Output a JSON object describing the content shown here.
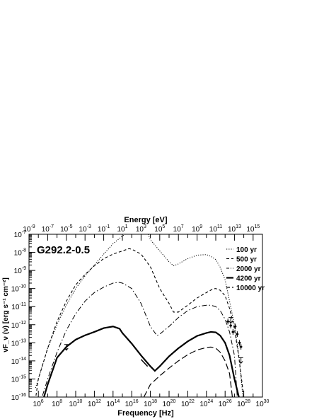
{
  "chart_data": {
    "type": "line",
    "title": "G292.2-0.5",
    "xlabel": "Frequency [Hz]",
    "xlabel_top": "Energy [eV]",
    "ylabel": "νF_ν (ν) [erg s⁻¹ cm⁻²]",
    "x_scale": "log",
    "y_scale": "log",
    "xlim": [
      100000.0,
      1e+30
    ],
    "xlim_top": [
      1e-09,
      1e+16
    ],
    "ylim": [
      1e-16,
      1e-07
    ],
    "legend_position": "top-right",
    "x_ticks": [
      {
        "exp": "6",
        "value": 1000000.0
      },
      {
        "exp": "8",
        "value": 100000000.0
      },
      {
        "exp": "10",
        "value": 10000000000.0
      },
      {
        "exp": "12",
        "value": 1000000000000.0
      },
      {
        "exp": "14",
        "value": 100000000000000.0
      },
      {
        "exp": "16",
        "value": 1e+16
      },
      {
        "exp": "18",
        "value": 1e+18
      },
      {
        "exp": "20",
        "value": 1e+20
      },
      {
        "exp": "22",
        "value": 1e+22
      },
      {
        "exp": "24",
        "value": 1e+24
      },
      {
        "exp": "26",
        "value": 1e+26
      },
      {
        "exp": "28",
        "value": 1e+28
      },
      {
        "exp": "30",
        "value": 1e+30
      }
    ],
    "x_ticks_top": [
      {
        "exp": "-9",
        "value": 1e-09
      },
      {
        "exp": "-7",
        "value": 1e-07
      },
      {
        "exp": "-5",
        "value": 1e-05
      },
      {
        "exp": "-3",
        "value": 0.001
      },
      {
        "exp": "-1",
        "value": 0.1
      },
      {
        "exp": "1",
        "value": 10.0
      },
      {
        "exp": "3",
        "value": 1000.0
      },
      {
        "exp": "5",
        "value": 100000.0
      },
      {
        "exp": "7",
        "value": 10000000.0
      },
      {
        "exp": "9",
        "value": 1000000000.0
      },
      {
        "exp": "11",
        "value": 100000000000.0
      },
      {
        "exp": "13",
        "value": 10000000000000.0
      },
      {
        "exp": "15",
        "value": 1000000000000000.0
      }
    ],
    "y_ticks": [
      {
        "exp": "-7",
        "value": 1e-07
      },
      {
        "exp": "-8",
        "value": 1e-08
      },
      {
        "exp": "-9",
        "value": 1e-09
      },
      {
        "exp": "-10",
        "value": 1e-10
      },
      {
        "exp": "-11",
        "value": 1e-11
      },
      {
        "exp": "-12",
        "value": 1e-12
      },
      {
        "exp": "-13",
        "value": 1e-13
      },
      {
        "exp": "-14",
        "value": 1e-14
      },
      {
        "exp": "-15",
        "value": 1e-15
      },
      {
        "exp": "-16",
        "value": 1e-16
      }
    ],
    "series": [
      {
        "name": "100 yr",
        "style": "dotted",
        "points": [
          [
            500000.0,
            3.2e-16
          ],
          [
            10000000.0,
            5e-14
          ],
          [
            100000000.0,
            1e-12
          ],
          [
            1000000000.0,
            1.2e-11
          ],
          [
            10000000000.0,
            1e-10
          ],
          [
            100000000000.0,
            5e-10
          ],
          [
            1000000000000.0,
            2e-09
          ],
          [
            10000000000000.0,
            8e-09
          ],
          [
            100000000000000.0,
            3e-08
          ],
          [
            1000000000000000.0,
            8e-08
          ],
          [
            1e+16,
            1.6e-07
          ],
          [
            1e+17,
            3e-07
          ],
          [
            4e+17,
            1.5e-07
          ],
          [
            1e+18,
            5e-08
          ],
          [
            1e+19,
            1.2e-08
          ],
          [
            1e+20,
            3e-09
          ],
          [
            3e+20,
            1.8e-09
          ],
          [
            1e+21,
            2.3e-09
          ],
          [
            1e+22,
            4.5e-09
          ],
          [
            1e+23,
            7e-09
          ],
          [
            1e+24,
            7.5e-09
          ],
          [
            3e+24,
            6e-09
          ],
          [
            1e+25,
            4e-09
          ],
          [
            3e+25,
            1.5e-09
          ],
          [
            1e+26,
            3e-10
          ],
          [
            3e+26,
            2e-11
          ],
          [
            1e+27,
            1e-12
          ],
          [
            3e+27,
            2e-14
          ],
          [
            8e+27,
            1e-16
          ]
        ]
      },
      {
        "name": "500 yr",
        "style": "dashed",
        "points": [
          [
            560000.0,
            1.2e-16
          ],
          [
            1000000.0,
            1e-15
          ],
          [
            10000000.0,
            5e-14
          ],
          [
            100000000.0,
            1.5e-12
          ],
          [
            1000000000.0,
            2e-11
          ],
          [
            10000000000.0,
            1.6e-10
          ],
          [
            100000000000.0,
            6e-10
          ],
          [
            1000000000000.0,
            1.8e-09
          ],
          [
            10000000000000.0,
            4.5e-09
          ],
          [
            100000000000000.0,
            8e-09
          ],
          [
            1000000000000000.0,
            1.2e-08
          ],
          [
            5000000000000000.0,
            1.6e-08
          ],
          [
            1e+16,
            1.5e-08
          ],
          [
            1e+17,
            8e-09
          ],
          [
            1e+18,
            1.6e-09
          ],
          [
            1e+19,
            1e-10
          ],
          [
            1e+20,
            1.5e-11
          ],
          [
            3e+20,
            5e-12
          ],
          [
            1e+21,
            5e-12
          ],
          [
            1e+22,
            1.2e-11
          ],
          [
            1e+23,
            3e-11
          ],
          [
            1e+24,
            6e-11
          ],
          [
            5e+24,
            9.5e-11
          ],
          [
            1e+25,
            1e-10
          ],
          [
            3e+25,
            8e-11
          ],
          [
            1e+26,
            4e-11
          ],
          [
            3e+26,
            8e-12
          ],
          [
            1e+27,
            6e-13
          ],
          [
            3e+27,
            1.5e-14
          ],
          [
            1e+28,
            1e-16
          ]
        ]
      },
      {
        "name": "2000 yr",
        "style": "dashdot",
        "points": [
          [
            2800000.0,
            1.2e-16
          ],
          [
            10000000.0,
            1e-15
          ],
          [
            100000000.0,
            3e-14
          ],
          [
            1000000000.0,
            5e-13
          ],
          [
            10000000000.0,
            4e-12
          ],
          [
            100000000000.0,
            2e-11
          ],
          [
            1000000000000.0,
            6e-11
          ],
          [
            10000000000000.0,
            1.2e-10
          ],
          [
            100000000000000.0,
            2e-10
          ],
          [
            400000000000000.0,
            2.2e-10
          ],
          [
            1000000000000000.0,
            2e-10
          ],
          [
            1e+16,
            1e-10
          ],
          [
            1e+17,
            1.5e-11
          ],
          [
            1e+18,
            8e-13
          ],
          [
            5e+18,
            2.5e-13
          ],
          [
            1e+19,
            3e-13
          ],
          [
            1e+20,
            8e-13
          ],
          [
            1e+21,
            2.5e-12
          ],
          [
            1e+22,
            6e-12
          ],
          [
            1e+23,
            1e-11
          ],
          [
            1e+24,
            1.2e-11
          ],
          [
            3e+24,
            1.2e-11
          ],
          [
            1e+25,
            1e-11
          ],
          [
            3e+25,
            6e-12
          ],
          [
            1e+26,
            2e-12
          ],
          [
            3e+26,
            4e-13
          ],
          [
            1e+27,
            2e-14
          ],
          [
            2e+27,
            1e-16
          ]
        ]
      },
      {
        "name": "4200 yr",
        "style": "solid",
        "points": [
          [
            4000000.0,
            1e-16
          ],
          [
            10000000.0,
            5e-16
          ],
          [
            100000000.0,
            1.5e-14
          ],
          [
            1000000000.0,
            6e-14
          ],
          [
            10000000000.0,
            1.5e-13
          ],
          [
            100000000000.0,
            2.6e-13
          ],
          [
            1000000000000.0,
            4e-13
          ],
          [
            10000000000000.0,
            6.5e-13
          ],
          [
            100000000000000.0,
            8e-13
          ],
          [
            500000000000000.0,
            6e-13
          ],
          [
            1000000000000000.0,
            3.5e-13
          ],
          [
            1e+16,
            9e-14
          ],
          [
            1e+17,
            2e-14
          ],
          [
            1e+18,
            5e-15
          ],
          [
            3e+18,
            2.8e-15
          ],
          [
            1e+19,
            5e-15
          ],
          [
            1e+20,
            1.8e-14
          ],
          [
            1e+21,
            5e-14
          ],
          [
            1e+22,
            1.2e-13
          ],
          [
            1e+23,
            2.4e-13
          ],
          [
            1e+24,
            3.5e-13
          ],
          [
            3e+24,
            4e-13
          ],
          [
            1e+25,
            3.8e-13
          ],
          [
            3e+25,
            2.5e-13
          ],
          [
            1e+26,
            1e-13
          ],
          [
            3e+26,
            2e-14
          ],
          [
            1e+27,
            1e-15
          ],
          [
            3e+27,
            1e-16
          ]
        ]
      },
      {
        "name": "10000 yr",
        "style": "longdash",
        "points": [
          [
            2e+17,
            1e-16
          ],
          [
            1e+18,
            5e-16
          ],
          [
            1e+19,
            1.5e-15
          ],
          [
            1e+20,
            4e-15
          ],
          [
            1e+21,
            1e-14
          ],
          [
            1e+22,
            2.2e-14
          ],
          [
            1e+23,
            4e-14
          ],
          [
            1e+24,
            5.5e-14
          ],
          [
            3e+24,
            5.8e-14
          ],
          [
            1e+25,
            5e-14
          ],
          [
            3e+25,
            3e-14
          ],
          [
            1e+26,
            1e-14
          ],
          [
            3e+26,
            2e-15
          ],
          [
            6e+26,
            1e-16
          ]
        ]
      }
    ],
    "observations": {
      "upper_limits": [
        [
          1000000000.0,
          8e-14
        ],
        [
          4e+26,
          2.5e-12
        ],
        [
          5e+27,
          1.5e-14
        ]
      ],
      "gamma_points": [
        [
          2e+26,
          1.5e-12
        ],
        [
          4e+26,
          9e-13
        ],
        [
          7e+26,
          4e-13
        ],
        [
          1.2e+27,
          8e-13
        ],
        [
          2e+27,
          3e-13
        ],
        [
          3.5e+27,
          1e-13
        ],
        [
          5e+27,
          6e-14
        ]
      ],
      "xray_bowtie": [
        [
          1e+17,
          1.2e-14
        ],
        [
          5e+17,
          5e-15
        ]
      ]
    }
  }
}
